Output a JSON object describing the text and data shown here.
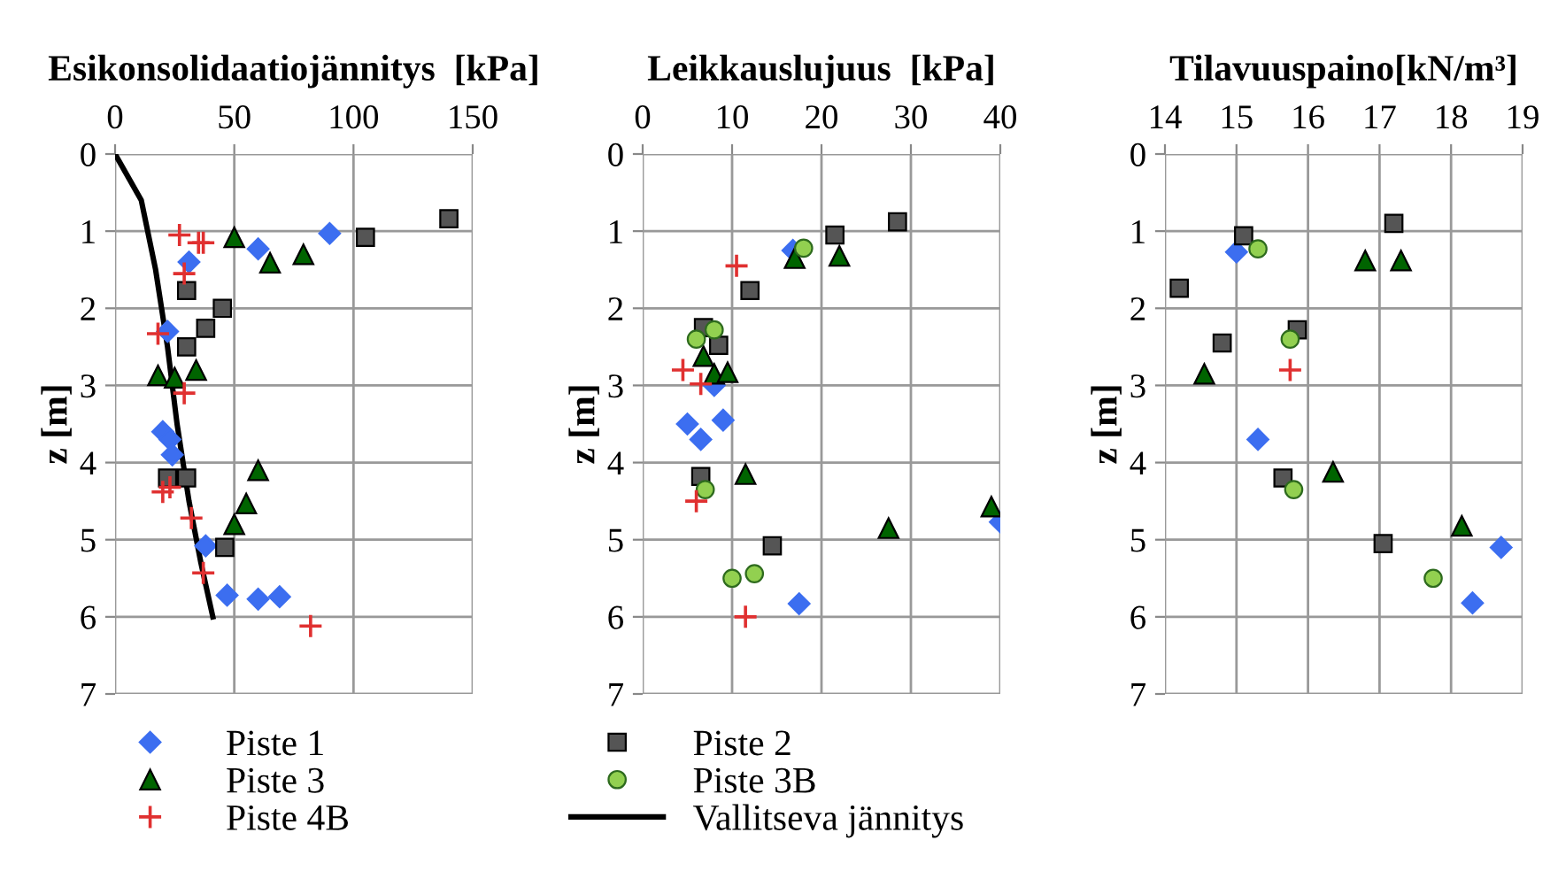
{
  "chart_data": [
    {
      "type": "scatter",
      "title": "Esikonsolidaatiojännitys  [kPa]",
      "ylabel": "z [m]",
      "xlim": [
        0,
        150
      ],
      "xticks": [
        0,
        50,
        100,
        150
      ],
      "ylim": [
        7,
        0
      ],
      "yticks": [
        0,
        1,
        2,
        3,
        4,
        5,
        6,
        7
      ],
      "grid": true,
      "legend": "bottom",
      "series": [
        {
          "name": "Piste 1",
          "color": "#3c6ef0",
          "marker": "diamond",
          "x": [
            90,
            60,
            31,
            22,
            20,
            23,
            24,
            38,
            47,
            60,
            69
          ],
          "values": [
            1.03,
            1.23,
            1.4,
            2.3,
            3.6,
            3.7,
            3.9,
            5.08,
            5.72,
            5.77,
            5.74
          ]
        },
        {
          "name": "Piste 2",
          "color": "#555555",
          "marker": "square",
          "x": [
            140,
            105,
            30,
            45,
            38,
            30,
            22,
            30,
            46
          ],
          "values": [
            0.84,
            1.08,
            1.77,
            2.0,
            2.26,
            2.5,
            4.2,
            4.2,
            5.1
          ]
        },
        {
          "name": "Piste 3",
          "color": "#006400",
          "marker": "triangle",
          "x": [
            50,
            79,
            65,
            18,
            25,
            34,
            60,
            55,
            50
          ],
          "values": [
            1.08,
            1.3,
            1.41,
            2.87,
            2.9,
            2.8,
            4.1,
            4.53,
            4.8
          ]
        },
        {
          "name": "Piste 4B",
          "color": "#e03030",
          "marker": "cross",
          "x": [
            27,
            35,
            37,
            29,
            18,
            29,
            20,
            23,
            32,
            37,
            82
          ],
          "values": [
            1.05,
            1.15,
            1.15,
            1.55,
            2.33,
            3.1,
            4.38,
            4.32,
            4.72,
            5.43,
            6.12
          ]
        },
        {
          "name": "Vallitseva jännitys",
          "type": "line",
          "color": "#000000",
          "marker": "none",
          "line_style": "solid",
          "x": [
            0,
            11,
            17,
            22,
            26,
            31,
            36,
            41
          ],
          "values": [
            0,
            0.6,
            1.5,
            2.5,
            3.5,
            4.5,
            5.3,
            6.0
          ]
        }
      ]
    },
    {
      "type": "scatter",
      "title": "Leikkauslujuus  [kPa]",
      "ylabel": "z [m]",
      "xlim": [
        0,
        40
      ],
      "xticks": [
        0,
        10,
        20,
        30,
        40
      ],
      "ylim": [
        7,
        0
      ],
      "yticks": [
        0,
        1,
        2,
        3,
        4,
        5,
        6,
        7
      ],
      "grid": true,
      "series": [
        {
          "name": "Piste 1",
          "color": "#3c6ef0",
          "marker": "diamond",
          "x": [
            16.8,
            8,
            5,
            6.5,
            9,
            40,
            17.5
          ],
          "values": [
            1.25,
            3.0,
            3.5,
            3.7,
            3.45,
            4.77,
            5.83
          ]
        },
        {
          "name": "Piste 2",
          "color": "#555555",
          "marker": "square",
          "x": [
            28.5,
            21.5,
            12,
            6.8,
            8.5,
            6.5,
            14.5
          ],
          "values": [
            0.88,
            1.05,
            1.77,
            2.25,
            2.48,
            4.18,
            5.08
          ]
        },
        {
          "name": "Piste 3",
          "color": "#006400",
          "marker": "triangle",
          "x": [
            17,
            22,
            6.8,
            8,
            9.5,
            11.5,
            27.5,
            39
          ],
          "values": [
            1.35,
            1.32,
            2.62,
            2.85,
            2.83,
            4.15,
            4.85,
            4.57
          ]
        },
        {
          "name": "Piste 3B",
          "color": "#92d050",
          "marker": "circle",
          "x": [
            18,
            6,
            8,
            7,
            10,
            12.5
          ],
          "values": [
            1.22,
            2.4,
            2.28,
            4.35,
            5.5,
            5.44
          ]
        },
        {
          "name": "Piste 4B",
          "color": "#e03030",
          "marker": "cross",
          "x": [
            10.5,
            4.5,
            6.5,
            6,
            11.5
          ],
          "values": [
            1.45,
            2.8,
            2.98,
            4.5,
            6.0
          ]
        }
      ]
    },
    {
      "type": "scatter",
      "title": "Tilavuuspaino[kN/m³]",
      "ylabel": "z [m]",
      "xlim": [
        14,
        19
      ],
      "xticks": [
        14,
        15,
        16,
        17,
        18,
        19
      ],
      "ylim": [
        7,
        0
      ],
      "yticks": [
        0,
        1,
        2,
        3,
        4,
        5,
        6,
        7
      ],
      "grid": true,
      "series": [
        {
          "name": "Piste 1",
          "color": "#3c6ef0",
          "marker": "diamond",
          "x": [
            15.0,
            15.3,
            18.7,
            18.3
          ],
          "values": [
            1.27,
            3.7,
            5.1,
            5.82
          ]
        },
        {
          "name": "Piste 2",
          "color": "#555555",
          "marker": "square",
          "x": [
            15.1,
            17.2,
            14.2,
            15.85,
            14.8,
            15.65,
            17.05
          ],
          "values": [
            1.06,
            0.9,
            1.74,
            2.28,
            2.45,
            4.2,
            5.05
          ]
        },
        {
          "name": "Piste 3",
          "color": "#006400",
          "marker": "triangle",
          "x": [
            16.8,
            17.3,
            14.55,
            16.35,
            18.15
          ],
          "values": [
            1.38,
            1.38,
            2.85,
            4.12,
            4.82
          ]
        },
        {
          "name": "Piste 3B",
          "color": "#92d050",
          "marker": "circle",
          "x": [
            15.3,
            15.75,
            15.8,
            17.75
          ],
          "values": [
            1.23,
            2.4,
            4.35,
            5.5
          ]
        },
        {
          "name": "Piste 4B",
          "color": "#e03030",
          "marker": "cross",
          "x": [
            15.75
          ],
          "values": [
            2.8
          ]
        }
      ]
    }
  ]
}
